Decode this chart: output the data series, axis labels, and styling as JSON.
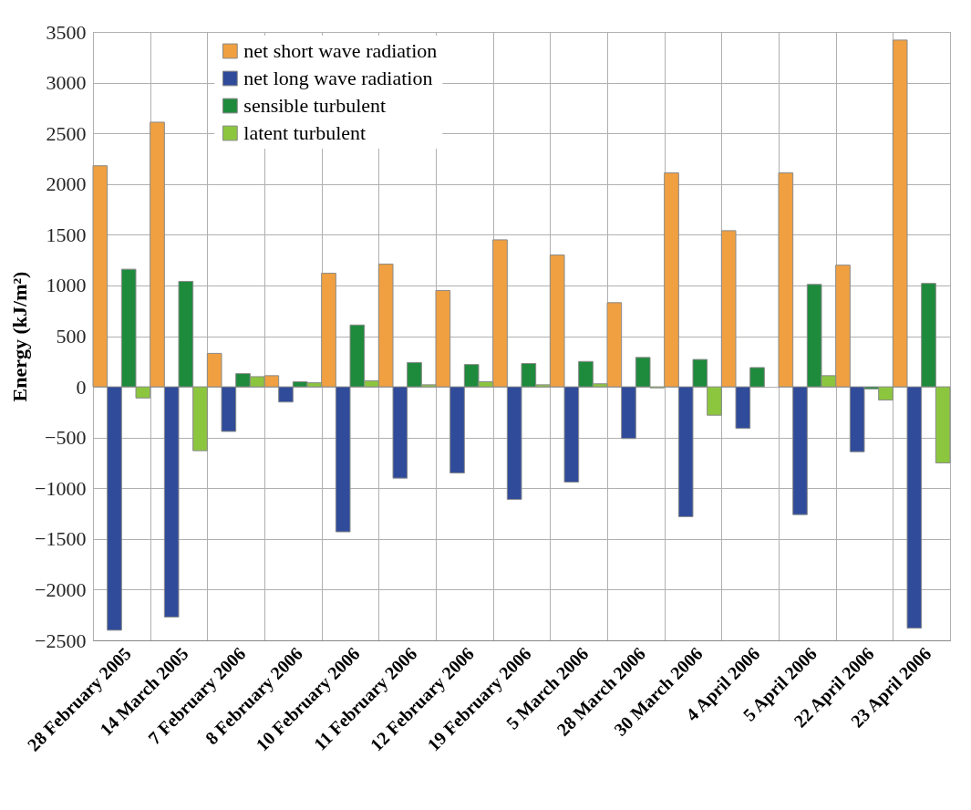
{
  "chart_data": {
    "type": "bar",
    "ylabel": "Energy (kJ/m²)",
    "categories": [
      "28 February 2005",
      "14 March 2005",
      "7 February 2006",
      "8 February 2006",
      "10 February 2006",
      "11 February 2006",
      "12 February 2006",
      "19 February 2006",
      "5 March 2006",
      "28 March 2006",
      "30 March 2006",
      "4 April 2006",
      "5 April 2006",
      "22 April 2006",
      "23 April 2006"
    ],
    "series": [
      {
        "name": "net short wave radiation",
        "color": "#f0a040",
        "values": [
          2180,
          2610,
          330,
          110,
          1120,
          1210,
          950,
          1450,
          1300,
          830,
          2110,
          1540,
          2110,
          1200,
          3420
        ]
      },
      {
        "name": "net long wave radiation",
        "color": "#2f4b9a",
        "values": [
          -2400,
          -2270,
          -440,
          -150,
          -1430,
          -900,
          -850,
          -1110,
          -940,
          -510,
          -1280,
          -410,
          -1260,
          -640,
          -2380
        ]
      },
      {
        "name": "sensible turbulent",
        "color": "#1e8a3c",
        "values": [
          1160,
          1040,
          130,
          50,
          610,
          240,
          220,
          230,
          250,
          290,
          270,
          190,
          1010,
          -20,
          1020
        ]
      },
      {
        "name": "latent turbulent",
        "color": "#8cc63f",
        "values": [
          -110,
          -630,
          100,
          40,
          60,
          20,
          50,
          20,
          30,
          -10,
          -280,
          null,
          110,
          -130,
          -750
        ]
      }
    ],
    "ylim": [
      -2500,
      3500
    ],
    "yticks": [
      -2500,
      -2000,
      -1500,
      -1000,
      -500,
      0,
      500,
      1000,
      1500,
      2000,
      2500,
      3000,
      3500
    ],
    "grid": true,
    "legend": "top left"
  }
}
